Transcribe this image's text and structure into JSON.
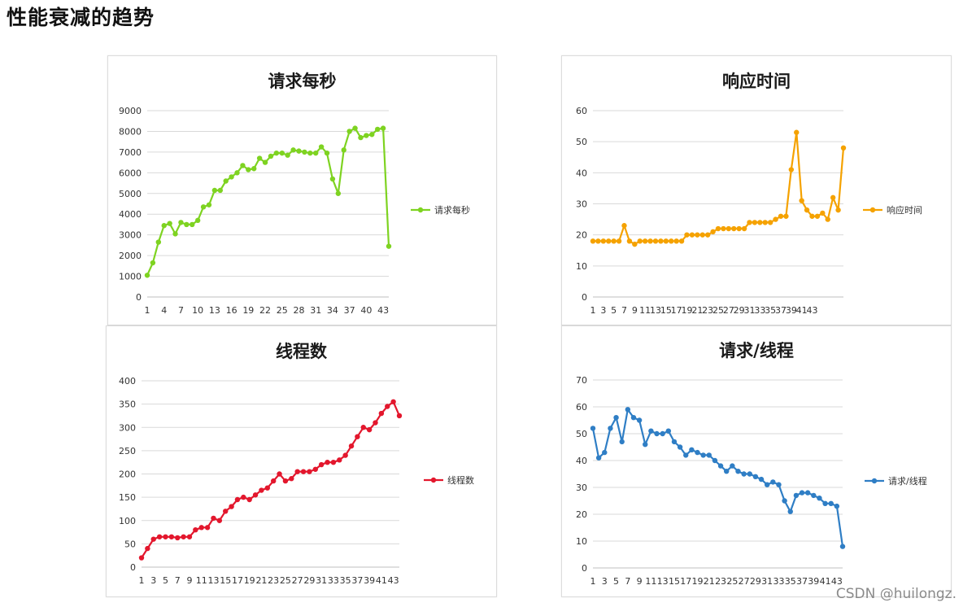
{
  "page": {
    "title": "性能衰减的趋势",
    "watermark": "CSDN @huilongz."
  },
  "chart_data": [
    {
      "type": "line",
      "title": "请求每秒",
      "series": [
        {
          "name": "请求每秒",
          "color": "#7ed321",
          "values": [
            1050,
            1650,
            2650,
            3450,
            3550,
            3050,
            3600,
            3500,
            3500,
            3700,
            4350,
            4450,
            5150,
            5150,
            5600,
            5800,
            6000,
            6350,
            6150,
            6200,
            6700,
            6500,
            6800,
            6950,
            6950,
            6850,
            7100,
            7050,
            7000,
            6950,
            6950,
            7250,
            6950,
            5700,
            5000,
            7100,
            8000,
            8150,
            7700,
            7800,
            7850,
            8100,
            8150,
            2450
          ]
        }
      ],
      "xticks": [
        "1",
        "4",
        "7",
        "10",
        "13",
        "16",
        "19",
        "22",
        "25",
        "28",
        "31",
        "34",
        "37",
        "40",
        "43"
      ],
      "ylim": [
        0,
        9000
      ],
      "yticks": [
        0,
        1000,
        2000,
        3000,
        4000,
        5000,
        6000,
        7000,
        8000,
        9000
      ],
      "legend": "right"
    },
    {
      "type": "line",
      "title": "响应时间",
      "series": [
        {
          "name": "响应时间",
          "color": "#f5a200",
          "values": [
            18,
            18,
            18,
            18,
            18,
            18,
            23,
            18,
            17,
            18,
            18,
            18,
            18,
            18,
            18,
            18,
            18,
            18,
            20,
            20,
            20,
            20,
            20,
            21,
            22,
            22,
            22,
            22,
            22,
            22,
            24,
            24,
            24,
            24,
            24,
            25,
            26,
            26,
            41,
            53,
            31,
            28,
            26,
            26,
            27,
            25,
            32,
            28,
            48
          ]
        }
      ],
      "xticks": [
        "1",
        "3",
        "5",
        "7",
        "9",
        "11",
        "13",
        "15",
        "17",
        "19",
        "21",
        "23",
        "25",
        "27",
        "29",
        "31",
        "33",
        "35",
        "37",
        "39",
        "41",
        "43"
      ],
      "ylim": [
        0,
        60
      ],
      "yticks": [
        0,
        10,
        20,
        30,
        40,
        50,
        60
      ],
      "legend": "right"
    },
    {
      "type": "line",
      "title": "线程数",
      "series": [
        {
          "name": "线程数",
          "color": "#e3172d",
          "values": [
            20,
            40,
            60,
            65,
            65,
            65,
            63,
            65,
            65,
            80,
            85,
            85,
            105,
            100,
            120,
            130,
            145,
            150,
            145,
            155,
            165,
            170,
            185,
            200,
            185,
            190,
            205,
            205,
            205,
            210,
            220,
            225,
            225,
            230,
            240,
            260,
            280,
            300,
            295,
            310,
            330,
            345,
            355,
            325
          ]
        }
      ],
      "xticks": [
        "1",
        "3",
        "5",
        "7",
        "9",
        "11",
        "13",
        "15",
        "17",
        "19",
        "21",
        "23",
        "25",
        "27",
        "29",
        "31",
        "33",
        "35",
        "37",
        "39",
        "41",
        "43"
      ],
      "ylim": [
        0,
        400
      ],
      "yticks": [
        0,
        50,
        100,
        150,
        200,
        250,
        300,
        350,
        400
      ],
      "legend": "right"
    },
    {
      "type": "line",
      "title": "请求/线程",
      "series": [
        {
          "name": "请求/线程",
          "color": "#2f7ec5",
          "values": [
            52,
            41,
            43,
            52,
            56,
            47,
            59,
            56,
            55,
            46,
            51,
            50,
            50,
            51,
            47,
            45,
            42,
            44,
            43,
            42,
            42,
            40,
            38,
            36,
            38,
            36,
            35,
            35,
            34,
            33,
            31,
            32,
            31,
            25,
            21,
            27,
            28,
            28,
            27,
            26,
            24,
            24,
            23,
            8
          ]
        }
      ],
      "xticks": [
        "1",
        "3",
        "5",
        "7",
        "9",
        "11",
        "13",
        "15",
        "17",
        "19",
        "21",
        "23",
        "25",
        "27",
        "29",
        "31",
        "33",
        "35",
        "37",
        "39",
        "41",
        "43"
      ],
      "ylim": [
        0,
        70
      ],
      "yticks": [
        0,
        10,
        20,
        30,
        40,
        50,
        60,
        70
      ],
      "legend": "right"
    }
  ]
}
